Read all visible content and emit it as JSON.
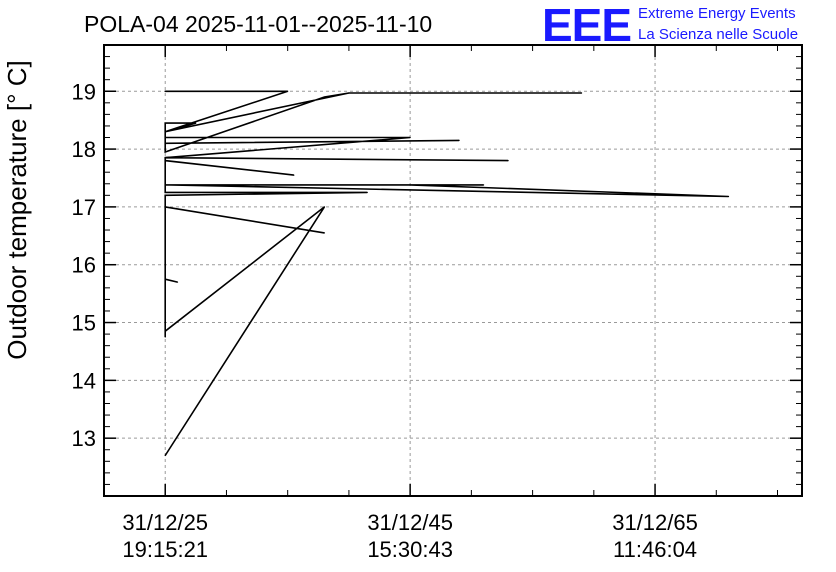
{
  "header": {
    "title": "POLA-04 2025-11-01--2025-11-10",
    "logo_text": "EEE",
    "logo_line1": "Extreme Energy Events",
    "logo_line2": "La Scienza nelle Scuole"
  },
  "colors": {
    "logo": "#1a1aff",
    "line": "#000000",
    "grid": "#9a9a9a"
  },
  "chart_data": {
    "type": "line",
    "title": "POLA-04 2025-11-01--2025-11-10",
    "xlabel": "",
    "ylabel": "Outdoor temperature [° C]",
    "xlim": [
      -0.5,
      5.2
    ],
    "ylim": [
      12.0,
      19.8
    ],
    "grid": true,
    "legend": "none",
    "x_ticks": [
      {
        "value": 0,
        "date": "31/12/25",
        "time": "19:15:21"
      },
      {
        "value": 2,
        "date": "31/12/45",
        "time": "15:30:43"
      },
      {
        "value": 4,
        "date": "31/12/65",
        "time": "11:46:04"
      }
    ],
    "y_ticks": [
      13,
      14,
      15,
      16,
      17,
      18,
      19
    ],
    "series": [
      {
        "x": [
          0.0,
          1.0,
          0.0,
          0.0,
          0.25,
          0.0,
          0.0,
          0.0,
          1.3,
          1.5,
          3.4,
          1.5,
          0.0,
          0.0,
          2.4,
          0.0,
          0.0,
          2.0,
          0.0,
          0.0,
          2.8,
          0.0,
          0.0,
          1.05,
          0.0,
          0.0,
          4.6,
          2.0,
          0.0,
          2.6,
          0.0,
          0.0,
          1.65,
          0.0,
          0.0,
          1.3,
          0.0,
          0.0,
          0.1,
          0.0,
          0.0,
          0.0,
          1.3,
          0.0
        ],
        "y": [
          19.0,
          19.0,
          18.3,
          18.45,
          18.45,
          18.3,
          17.95,
          17.95,
          18.9,
          18.97,
          18.97,
          18.97,
          18.3,
          18.1,
          18.15,
          18.1,
          18.2,
          18.2,
          17.85,
          17.85,
          17.8,
          17.85,
          17.8,
          17.55,
          17.8,
          17.38,
          17.18,
          17.38,
          17.38,
          17.38,
          17.38,
          17.25,
          17.25,
          17.2,
          17.0,
          16.55,
          17.0,
          15.75,
          15.7,
          15.75,
          14.75,
          14.85,
          17.0,
          12.7
        ]
      }
    ]
  }
}
